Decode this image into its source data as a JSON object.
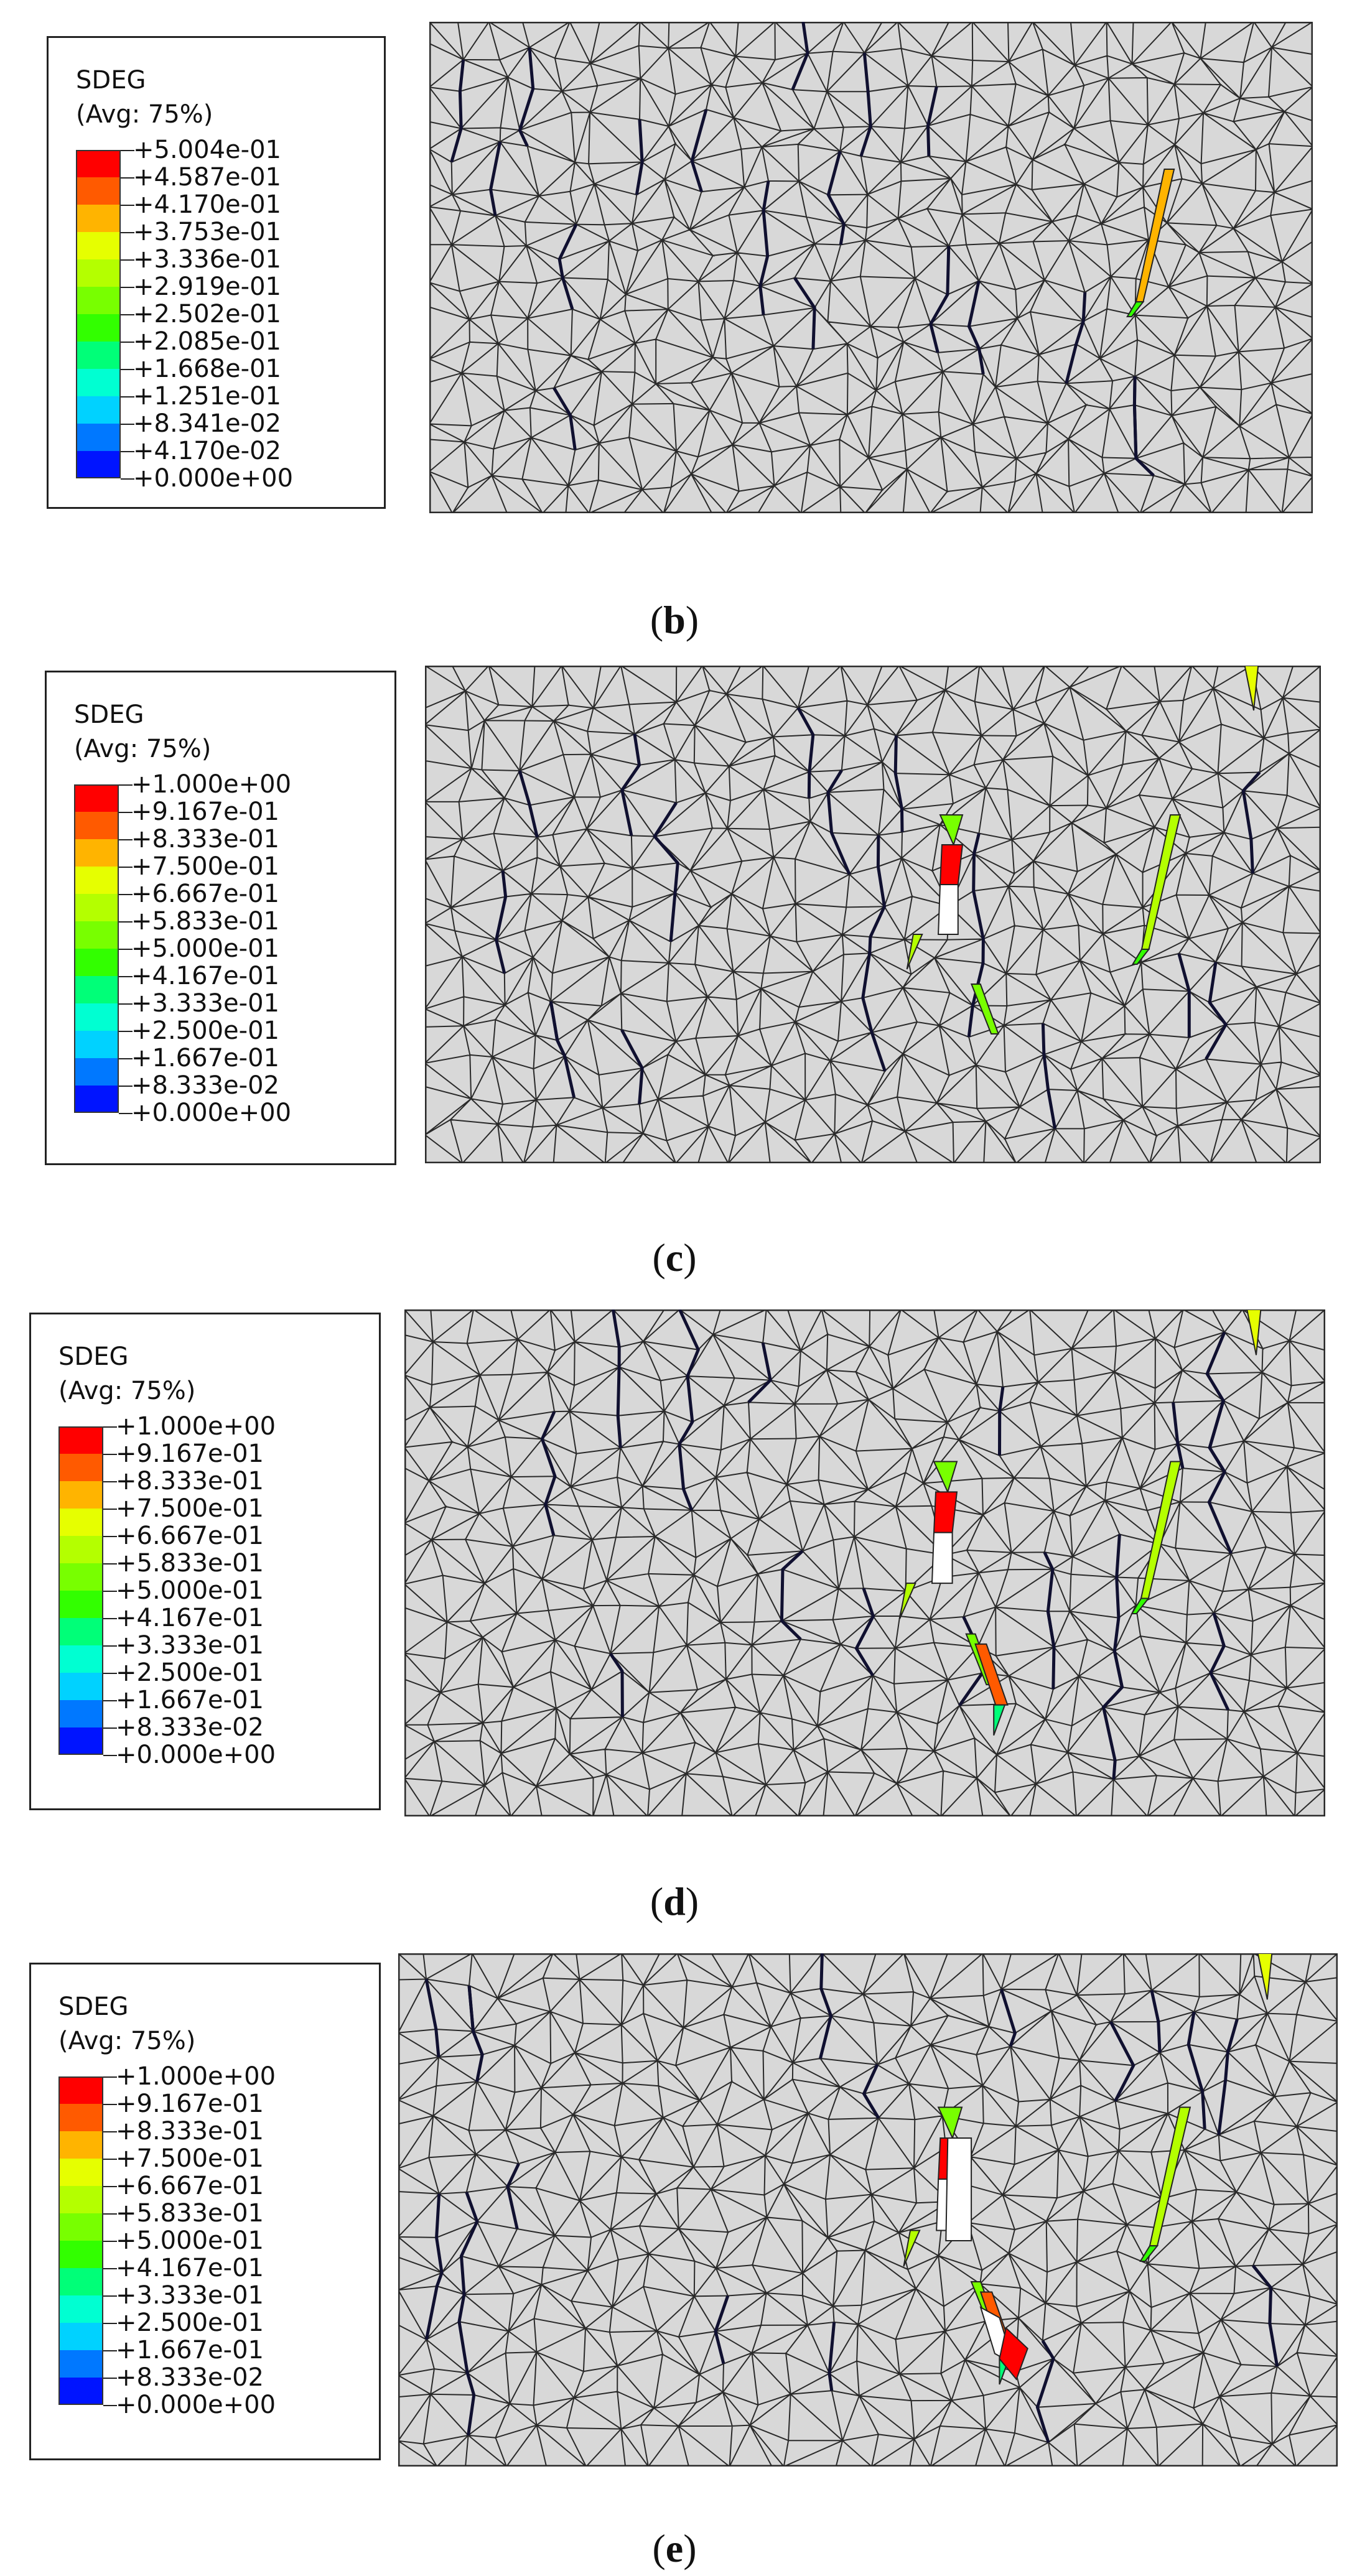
{
  "panels": [
    {
      "caption_open": "(",
      "caption_letter": "b",
      "caption_close": ")",
      "legend": {
        "variable": "SDEG",
        "averaging": "(Avg: 75%)",
        "levels": [
          "+5.004e-01",
          "+4.587e-01",
          "+4.170e-01",
          "+3.753e-01",
          "+3.336e-01",
          "+2.919e-01",
          "+2.502e-01",
          "+2.085e-01",
          "+1.668e-01",
          "+1.251e-01",
          "+8.341e-02",
          "+4.170e-02",
          "+0.000e+00"
        ]
      }
    },
    {
      "caption_open": "(",
      "caption_letter": "c",
      "caption_close": ")",
      "legend": {
        "variable": "SDEG",
        "averaging": "(Avg: 75%)",
        "levels": [
          "+1.000e+00",
          "+9.167e-01",
          "+8.333e-01",
          "+7.500e-01",
          "+6.667e-01",
          "+5.833e-01",
          "+5.000e-01",
          "+4.167e-01",
          "+3.333e-01",
          "+2.500e-01",
          "+1.667e-01",
          "+8.333e-02",
          "+0.000e+00"
        ]
      }
    },
    {
      "caption_open": "(",
      "caption_letter": "d",
      "caption_close": ")",
      "legend": {
        "variable": "SDEG",
        "averaging": "(Avg: 75%)",
        "levels": [
          "+1.000e+00",
          "+9.167e-01",
          "+8.333e-01",
          "+7.500e-01",
          "+6.667e-01",
          "+5.833e-01",
          "+5.000e-01",
          "+4.167e-01",
          "+3.333e-01",
          "+2.500e-01",
          "+1.667e-01",
          "+8.333e-02",
          "+0.000e+00"
        ]
      }
    },
    {
      "caption_open": "(",
      "caption_letter": "e",
      "caption_close": ")",
      "legend": {
        "variable": "SDEG",
        "averaging": "(Avg: 75%)",
        "levels": [
          "+1.000e+00",
          "+9.167e-01",
          "+8.333e-01",
          "+7.500e-01",
          "+6.667e-01",
          "+5.833e-01",
          "+5.000e-01",
          "+4.167e-01",
          "+3.333e-01",
          "+2.500e-01",
          "+1.667e-01",
          "+8.333e-02",
          "+0.000e+00"
        ]
      }
    }
  ],
  "colormap": [
    "#ff0000",
    "#ff5a00",
    "#ffb400",
    "#e6ff00",
    "#b4ff00",
    "#78ff00",
    "#32ff00",
    "#00ff78",
    "#00ffd2",
    "#00d2ff",
    "#0078ff",
    "#0014ff"
  ],
  "mesh_fill": "#d8d8d8",
  "mesh_line": "#2a2a2a",
  "crack_stage": [
    0,
    1,
    2,
    3
  ]
}
